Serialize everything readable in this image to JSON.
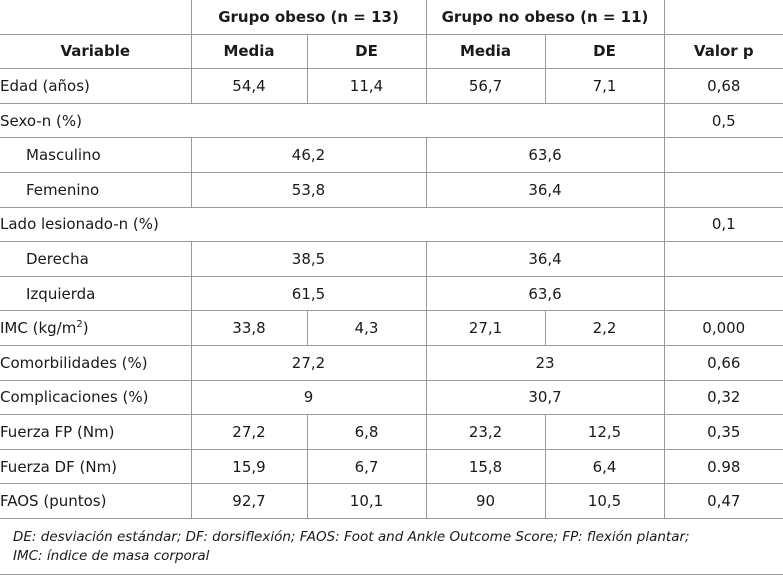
{
  "header": {
    "group_obese": "Grupo obeso (n = 13)",
    "group_non_obese": "Grupo no obeso (n = 11)",
    "col_variable": "Variable",
    "col_media_1": "Media",
    "col_de_1": "DE",
    "col_media_2": "Media",
    "col_de_2": "DE",
    "col_p": "Valor p"
  },
  "rows": {
    "edad": {
      "label": "Edad (años)",
      "m1": "54,4",
      "de1": "11,4",
      "m2": "56,7",
      "de2": "7,1",
      "p": "0,68"
    },
    "sexo": {
      "label": "Sexo-n (%)",
      "p": "0,5"
    },
    "masculino": {
      "label": "Masculino",
      "g1": "46,2",
      "g2": "63,6"
    },
    "femenino": {
      "label": "Femenino",
      "g1": "53,8",
      "g2": "36,4"
    },
    "lado": {
      "label": "Lado lesionado-n (%)",
      "p": "0,1"
    },
    "derecha": {
      "label": "Derecha",
      "g1": "38,5",
      "g2": "36,4"
    },
    "izquierda": {
      "label": "Izquierda",
      "g1": "61,5",
      "g2": "63,6"
    },
    "imc": {
      "label_main": "IMC (kg/m",
      "label_sup": "2",
      "label_end": ")",
      "m1": "33,8",
      "de1": "4,3",
      "m2": "27,1",
      "de2": "2,2",
      "p": "0,000"
    },
    "comorbilidades": {
      "label": "Comorbilidades (%)",
      "g1": "27,2",
      "g2": "23",
      "p": "0,66"
    },
    "complicaciones": {
      "label": "Complicaciones (%)",
      "g1": "9",
      "g2": "30,7",
      "p": "0,32"
    },
    "fuerza_fp": {
      "label": "Fuerza FP (Nm)",
      "m1": "27,2",
      "de1": "6,8",
      "m2": "23,2",
      "de2": "12,5",
      "p": "0,35"
    },
    "fuerza_df": {
      "label": "Fuerza DF (Nm)",
      "m1": "15,9",
      "de1": "6,7",
      "m2": "15,8",
      "de2": "6,4",
      "p": "0.98"
    },
    "faos": {
      "label": "FAOS (puntos)",
      "m1": "92,7",
      "de1": "10,1",
      "m2": "90",
      "de2": "10,5",
      "p": "0,47"
    }
  },
  "footnote": {
    "line1": "DE: desviación estándar; DF: dorsiflexión; FAOS: Foot and Ankle Outcome Score; FP: flexión plantar;",
    "line2": "IMC: índice de masa corporal"
  }
}
